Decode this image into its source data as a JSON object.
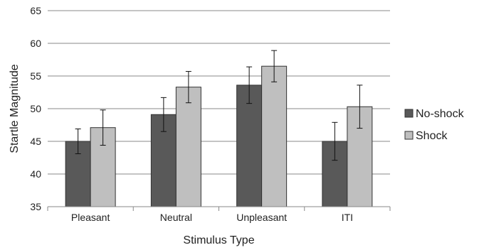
{
  "chart_data": {
    "type": "bar",
    "title": "",
    "xlabel": "Stimulus Type",
    "ylabel": "Startle Magnitude",
    "categories": [
      "Pleasant",
      "Neutral",
      "Unpleasant",
      "ITI"
    ],
    "ylim": [
      35,
      65
    ],
    "yticks": [
      35,
      40,
      45,
      50,
      55,
      60,
      65
    ],
    "grid": true,
    "legend_position": "right",
    "series": [
      {
        "name": "No-shock",
        "color": "#595959",
        "values": [
          45.0,
          49.1,
          53.6,
          45.0
        ],
        "error": [
          1.9,
          2.6,
          2.8,
          2.9
        ]
      },
      {
        "name": "Shock",
        "color": "#bfbfbf",
        "values": [
          47.1,
          53.3,
          56.5,
          50.3
        ],
        "error": [
          2.7,
          2.4,
          2.4,
          3.3
        ]
      }
    ]
  }
}
